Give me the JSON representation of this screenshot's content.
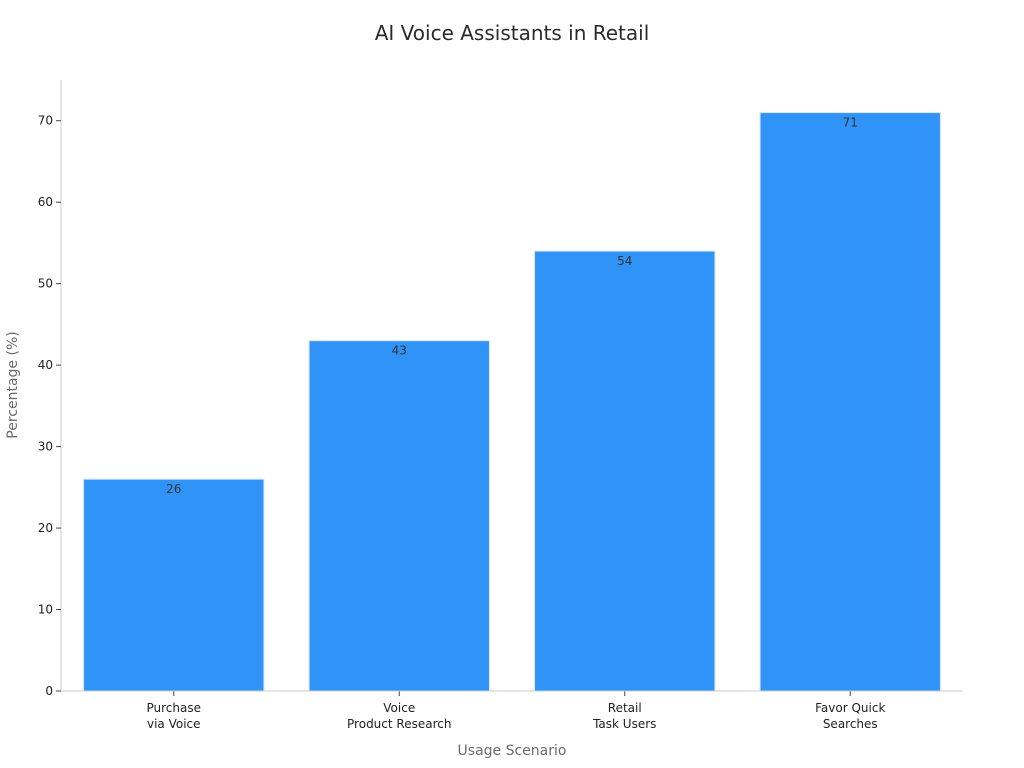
{
  "chart_data": {
    "type": "bar",
    "title": "AI Voice Assistants in Retail",
    "xlabel": "Usage Scenario",
    "ylabel": "Percentage (%)",
    "categories": [
      [
        "Purchase",
        "via Voice"
      ],
      [
        "Voice",
        "Product Research"
      ],
      [
        "Retail",
        "Task Users"
      ],
      [
        "Favor Quick",
        "Searches"
      ]
    ],
    "values": [
      26,
      43,
      54,
      71
    ],
    "ylim": [
      0,
      75
    ],
    "yticks": [
      0,
      10,
      20,
      30,
      40,
      50,
      60,
      70
    ],
    "grid": false,
    "legend": "none",
    "bar_color": "#3093f8",
    "bar_edge_color": "#d9e6f5"
  }
}
